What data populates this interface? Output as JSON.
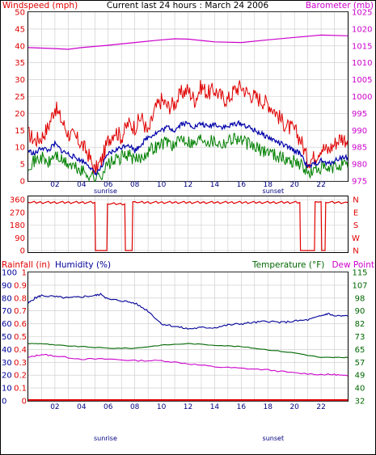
{
  "header": {
    "wind_label": "Windspeed (mph)",
    "title": "Current last 24 hours : March 24 2006",
    "baro_label": "Barometer (mb)"
  },
  "colors": {
    "wind": "#e00000",
    "gust": "#e00000",
    "wind_avg": "#008000",
    "baro": "#cc00cc",
    "blue": "#0000aa",
    "humidity": "#000099",
    "temperature": "#006600",
    "dewpoint": "#cc00cc",
    "rain": "#e00000",
    "frame": "#000000"
  },
  "bottom_header": {
    "rain_label": "Rainfall (in)",
    "humidity_label": "Humidity (%)",
    "temp_label": "Temperature (°F)",
    "dew_label": "Dew Point"
  },
  "chart_data": [
    {
      "type": "line",
      "panel": "wind_baro",
      "x_tick_labels": [
        "02",
        "04",
        "06",
        "08",
        "10",
        "12",
        "14",
        "16",
        "18",
        "20",
        "22"
      ],
      "sunrise_label": "sunrise",
      "sunset_label": "sunset",
      "sunrise_hour": 5.8,
      "sunset_hour": 18.4,
      "y_left": {
        "label": "Windspeed (mph)",
        "ticks": [
          0,
          5,
          10,
          15,
          20,
          25,
          30,
          35,
          40,
          45,
          50
        ],
        "range": [
          0,
          50
        ]
      },
      "y_right": {
        "label": "Barometer (mb)",
        "ticks": [
          975,
          980,
          985,
          990,
          995,
          1000,
          1005,
          1010,
          1015,
          1020,
          1025
        ],
        "range": [
          975,
          1025
        ]
      },
      "series": [
        {
          "name": "Barometer (mb)",
          "axis": "right",
          "x": [
            0,
            2,
            3,
            4,
            6,
            8,
            10,
            11,
            12,
            14,
            16,
            18,
            20,
            22,
            24
          ],
          "y": [
            1014.5,
            1014.2,
            1014.0,
            1014.5,
            1015.2,
            1016.0,
            1016.8,
            1017.1,
            1017.0,
            1016.2,
            1016.0,
            1016.8,
            1017.5,
            1018.2,
            1018.0
          ]
        },
        {
          "name": "Gust",
          "axis": "left",
          "x": [
            0,
            0.5,
            1,
            1.5,
            2,
            2.5,
            3,
            3.5,
            4,
            4.5,
            5,
            5.5,
            6,
            6.5,
            7,
            7.5,
            8,
            8.5,
            9,
            9.5,
            10,
            10.5,
            11,
            11.5,
            12,
            12.5,
            13,
            13.5,
            14,
            14.5,
            15,
            15.5,
            16,
            16.5,
            17,
            17.5,
            18,
            18.5,
            19,
            19.5,
            20,
            20.5,
            21,
            21.5,
            22,
            22.5,
            23,
            23.5,
            24
          ],
          "y": [
            14,
            12,
            13,
            16,
            22,
            18,
            14,
            13,
            11,
            8,
            3,
            6,
            12,
            15,
            13,
            17,
            16,
            19,
            14,
            21,
            24,
            22,
            23,
            26,
            27,
            24,
            28,
            26,
            27,
            25,
            24,
            27,
            28,
            26,
            25,
            24,
            23,
            21,
            18,
            16,
            15,
            12,
            6,
            7,
            10,
            9,
            11,
            13,
            12
          ]
        },
        {
          "name": "Average",
          "axis": "left",
          "x": [
            0,
            0.5,
            1,
            1.5,
            2,
            2.5,
            3,
            3.5,
            4,
            4.5,
            5,
            5.5,
            6,
            6.5,
            7,
            7.5,
            8,
            8.5,
            9,
            9.5,
            10,
            10.5,
            11,
            11.5,
            12,
            12.5,
            13,
            13.5,
            14,
            14.5,
            15,
            15.5,
            16,
            16.5,
            17,
            17.5,
            18,
            18.5,
            19,
            19.5,
            20,
            20.5,
            21,
            21.5,
            22,
            22.5,
            23,
            23.5,
            24
          ],
          "y": [
            9,
            8,
            10,
            9,
            11,
            9,
            8,
            7,
            6,
            5,
            2,
            4,
            8,
            9,
            10,
            11,
            9,
            11,
            13,
            14,
            15,
            16,
            15,
            17,
            17,
            16,
            17,
            16,
            17,
            16,
            16,
            17,
            17,
            16,
            15,
            14,
            13,
            12,
            11,
            10,
            9,
            8,
            4,
            5,
            6,
            5,
            6,
            7,
            7
          ]
        },
        {
          "name": "Lull",
          "axis": "left",
          "x": [
            0,
            0.5,
            1,
            1.5,
            2,
            2.5,
            3,
            3.5,
            4,
            4.5,
            5,
            5.5,
            6,
            6.5,
            7,
            7.5,
            8,
            8.5,
            9,
            9.5,
            10,
            10.5,
            11,
            11.5,
            12,
            12.5,
            13,
            13.5,
            14,
            14.5,
            15,
            15.5,
            16,
            16.5,
            17,
            17.5,
            18,
            18.5,
            19,
            19.5,
            20,
            20.5,
            21,
            21.5,
            22,
            22.5,
            23,
            23.5,
            24
          ],
          "y": [
            5,
            6,
            7,
            5,
            8,
            6,
            5,
            4,
            3,
            2,
            1,
            2,
            5,
            6,
            7,
            8,
            6,
            7,
            9,
            10,
            11,
            12,
            10,
            13,
            12,
            11,
            13,
            12,
            12,
            11,
            12,
            13,
            12,
            11,
            10,
            9,
            9,
            8,
            7,
            6,
            6,
            5,
            2,
            3,
            4,
            3,
            4,
            5,
            4
          ]
        }
      ]
    },
    {
      "type": "line",
      "panel": "wind_direction",
      "y_left": {
        "ticks": [
          0,
          90,
          180,
          270,
          360
        ],
        "range": [
          0,
          360
        ]
      },
      "y_right": {
        "ticks": [
          "N",
          "W",
          "S",
          "E",
          "N"
        ]
      },
      "series": [
        {
          "name": "Direction",
          "x": [
            0,
            5.0,
            5.05,
            5.9,
            5.95,
            7.25,
            7.3,
            7.8,
            7.85,
            8.05,
            8.1,
            20.4,
            20.45,
            21.5,
            21.55,
            22.0,
            22.05,
            22.3,
            22.35,
            24
          ],
          "y": [
            340,
            340,
            0,
            0,
            330,
            330,
            0,
            0,
            345,
            345,
            340,
            340,
            0,
            0,
            345,
            345,
            0,
            0,
            340,
            340
          ]
        }
      ]
    },
    {
      "type": "line",
      "panel": "humidity_temp",
      "x_tick_labels": [
        "02",
        "04",
        "06",
        "08",
        "10",
        "12",
        "14",
        "16",
        "18",
        "20",
        "22"
      ],
      "sunrise_label": "sunrise",
      "sunset_label": "sunset",
      "y_left_rain": {
        "label": "Rainfall (in)",
        "ticks": [
          0,
          0.1,
          0.2,
          0.3,
          0.4,
          0.5,
          0.6,
          0.7,
          0.8,
          0.9,
          1
        ],
        "tick_labels": [
          "0",
          "0.1",
          "0.2",
          "0.3",
          "0.4",
          "0.5",
          "0.6",
          "0.7",
          "0.8",
          "0.9",
          "1"
        ],
        "range": [
          0,
          1
        ]
      },
      "y_left_hum": {
        "label": "Humidity (%)",
        "ticks": [
          0,
          10,
          20,
          30,
          40,
          50,
          60,
          70,
          80,
          90,
          100
        ],
        "range": [
          0,
          100
        ]
      },
      "y_right": {
        "label": "Temperature (°F)",
        "ticks": [
          32,
          40,
          49,
          57,
          65,
          73,
          82,
          90,
          98,
          107,
          115
        ],
        "range": [
          32,
          115
        ]
      },
      "series": [
        {
          "name": "Humidity (%)",
          "axis": "hum",
          "x": [
            0,
            0.5,
            1,
            2,
            3,
            4,
            5,
            5.5,
            6,
            7,
            8,
            9,
            10,
            11,
            12,
            13,
            14,
            15,
            16,
            17,
            18,
            19,
            20,
            21,
            22,
            22.5,
            23,
            24
          ],
          "y": [
            76,
            80,
            82,
            81,
            80,
            81,
            82,
            83,
            79,
            78,
            76,
            70,
            60,
            58,
            56,
            57,
            57,
            59,
            60,
            61,
            62,
            61,
            62,
            63,
            66,
            68,
            66,
            66
          ]
        },
        {
          "name": "Temperature (°F)",
          "axis": "right",
          "x": [
            0,
            1,
            2,
            4,
            6,
            8,
            10,
            12,
            14,
            16,
            18,
            20,
            22,
            23,
            24
          ],
          "y": [
            69,
            69,
            68,
            67,
            66,
            66,
            68,
            69,
            68,
            67,
            65,
            63,
            60,
            60,
            60
          ]
        },
        {
          "name": "Dew Point",
          "axis": "right",
          "x": [
            0,
            1,
            2,
            4,
            6,
            8,
            10,
            12,
            14,
            16,
            18,
            20,
            22,
            23,
            24
          ],
          "y": [
            60,
            62,
            61,
            59,
            59,
            58,
            58,
            56,
            54,
            53,
            52,
            50,
            49,
            49,
            48
          ]
        },
        {
          "name": "Rainfall (in)",
          "axis": "rain",
          "x": [
            0,
            24
          ],
          "y": [
            0,
            0
          ]
        }
      ]
    }
  ]
}
